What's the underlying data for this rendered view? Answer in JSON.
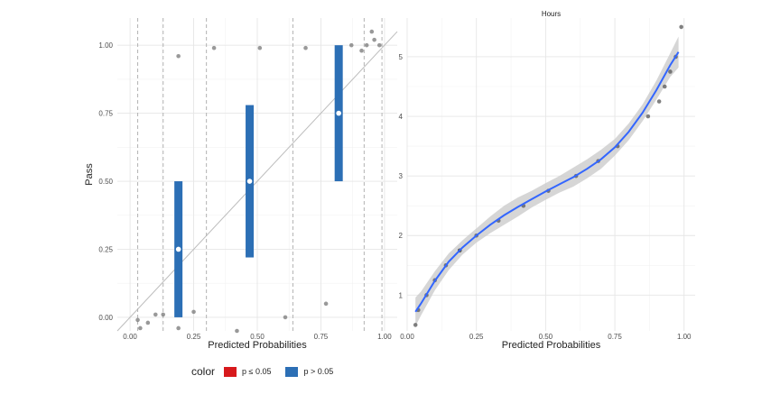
{
  "chart_data": [
    {
      "type": "scatter",
      "title": "",
      "xlabel": "Predicted Probabilities",
      "ylabel": "Pass",
      "xlim": [
        -0.05,
        1.05
      ],
      "ylim": [
        -0.05,
        1.1
      ],
      "x_ticks": [
        "0.00",
        "0.25",
        "0.50",
        "0.75",
        "1.00"
      ],
      "y_ticks": [
        "0.00",
        "0.25",
        "0.50",
        "0.75",
        "1.00"
      ],
      "grid": true,
      "reference_line": {
        "from": [
          -0.05,
          -0.05
        ],
        "to": [
          1.05,
          1.05
        ],
        "color": "#bdbdbd"
      },
      "bin_boundaries": [
        0.03,
        0.13,
        0.3,
        0.64,
        0.92,
        0.99
      ],
      "points": [
        [
          0.03,
          -0.01
        ],
        [
          0.04,
          -0.04
        ],
        [
          0.07,
          -0.02
        ],
        [
          0.1,
          0.01
        ],
        [
          0.13,
          0.01
        ],
        [
          0.19,
          0.96
        ],
        [
          0.19,
          -0.04
        ],
        [
          0.25,
          0.02
        ],
        [
          0.33,
          0.99
        ],
        [
          0.42,
          -0.05
        ],
        [
          0.51,
          0.99
        ],
        [
          0.61,
          0.0
        ],
        [
          0.69,
          0.99
        ],
        [
          0.77,
          0.05
        ],
        [
          0.87,
          1.0
        ],
        [
          0.91,
          0.98
        ],
        [
          0.93,
          1.0
        ],
        [
          0.95,
          1.05
        ],
        [
          0.96,
          1.02
        ],
        [
          0.98,
          1.0
        ]
      ],
      "bin_estimates": [
        {
          "x": 0.19,
          "y": 0.25,
          "low": 0.0,
          "high": 0.5,
          "group": "p > 0.05"
        },
        {
          "x": 0.47,
          "y": 0.5,
          "low": 0.22,
          "high": 0.78,
          "group": "p > 0.05"
        },
        {
          "x": 0.82,
          "y": 0.75,
          "low": 0.5,
          "high": 1.0,
          "group": "p > 0.05"
        }
      ]
    },
    {
      "type": "scatter",
      "title": "Hours",
      "xlabel": "Predicted Probabilities",
      "ylabel": "",
      "xlim": [
        0.0,
        1.04
      ],
      "ylim": [
        0.4,
        5.65
      ],
      "x_ticks": [
        "0.00",
        "0.25",
        "0.50",
        "0.75",
        "1.00"
      ],
      "y_ticks": [
        "1",
        "2",
        "3",
        "4",
        "5"
      ],
      "grid": true,
      "points": [
        [
          0.03,
          0.5
        ],
        [
          0.04,
          0.75
        ],
        [
          0.07,
          1.0
        ],
        [
          0.1,
          1.25
        ],
        [
          0.14,
          1.5
        ],
        [
          0.19,
          1.75
        ],
        [
          0.19,
          1.75
        ],
        [
          0.25,
          2.0
        ],
        [
          0.33,
          2.25
        ],
        [
          0.42,
          2.5
        ],
        [
          0.51,
          2.75
        ],
        [
          0.61,
          3.0
        ],
        [
          0.69,
          3.25
        ],
        [
          0.76,
          3.5
        ],
        [
          0.87,
          4.0
        ],
        [
          0.91,
          4.25
        ],
        [
          0.93,
          4.5
        ],
        [
          0.95,
          4.75
        ],
        [
          0.97,
          5.0
        ],
        [
          0.99,
          5.5
        ]
      ],
      "smooth": {
        "x": [
          0.03,
          0.05,
          0.1,
          0.15,
          0.2,
          0.25,
          0.3,
          0.35,
          0.4,
          0.45,
          0.5,
          0.55,
          0.6,
          0.65,
          0.7,
          0.75,
          0.8,
          0.85,
          0.9,
          0.95,
          0.98
        ],
        "y": [
          0.72,
          0.86,
          1.24,
          1.56,
          1.8,
          2.0,
          2.18,
          2.34,
          2.48,
          2.61,
          2.74,
          2.86,
          2.98,
          3.12,
          3.28,
          3.48,
          3.74,
          4.06,
          4.44,
          4.86,
          5.08
        ],
        "se": [
          0.12,
          0.1,
          0.08,
          0.07,
          0.06,
          0.06,
          0.07,
          0.08,
          0.08,
          0.07,
          0.07,
          0.07,
          0.08,
          0.08,
          0.08,
          0.07,
          0.07,
          0.07,
          0.08,
          0.1,
          0.13
        ],
        "color": "#3366ff",
        "band_color": "#cccccc"
      }
    }
  ],
  "legend": {
    "title": "color",
    "items": [
      {
        "label": "p ≤ 0.05",
        "color": "#d7191c"
      },
      {
        "label": "p > 0.05",
        "color": "#2c6fb5"
      }
    ]
  }
}
